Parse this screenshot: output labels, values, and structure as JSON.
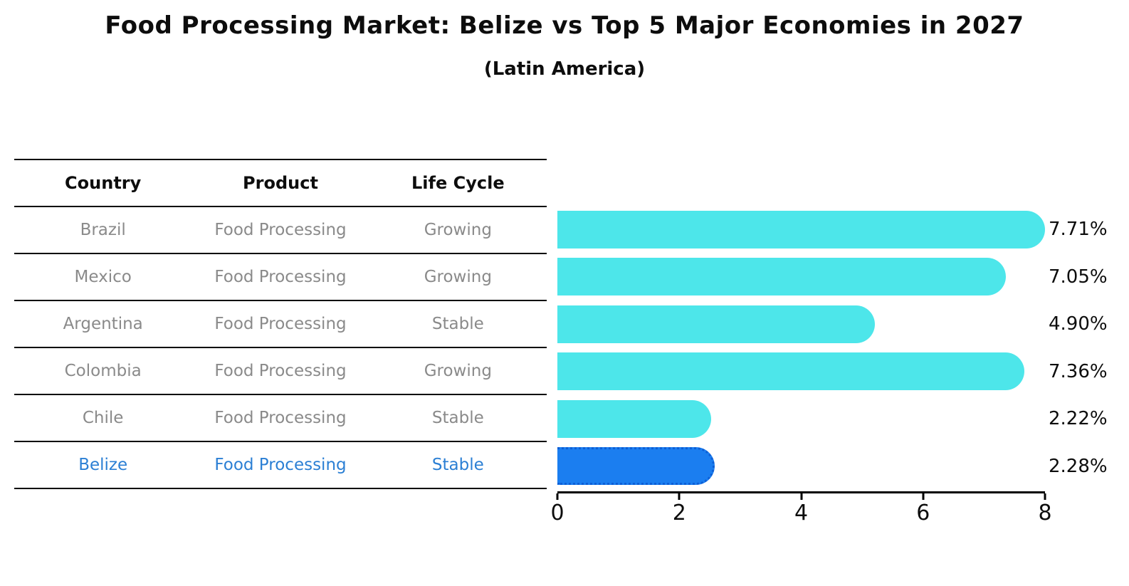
{
  "title": "Food Processing Market: Belize vs Top 5 Major Economies in 2027",
  "subtitle": "(Latin America)",
  "table": {
    "headers": [
      "Country",
      "Product",
      "Life Cycle"
    ],
    "rows": [
      {
        "country": "Brazil",
        "product": "Food Processing",
        "life_cycle": "Growing"
      },
      {
        "country": "Mexico",
        "product": "Food Processing",
        "life_cycle": "Growing"
      },
      {
        "country": "Argentina",
        "product": "Food Processing",
        "life_cycle": "Stable"
      },
      {
        "country": "Colombia",
        "product": "Food Processing",
        "life_cycle": "Growing"
      },
      {
        "country": "Chile",
        "product": "Food Processing",
        "life_cycle": "Stable"
      },
      {
        "country": "Belize",
        "product": "Food Processing",
        "life_cycle": "Stable"
      }
    ]
  },
  "chart_data": {
    "type": "bar",
    "orientation": "horizontal",
    "title": "Food Processing Market: Belize vs Top 5 Major Economies in 2027 (Latin America)",
    "categories": [
      "Brazil",
      "Mexico",
      "Argentina",
      "Colombia",
      "Chile",
      "Belize"
    ],
    "values": [
      7.71,
      7.05,
      4.9,
      7.36,
      2.22,
      2.28
    ],
    "value_labels": [
      "7.71%",
      "7.05%",
      "4.90%",
      "7.36%",
      "2.22%",
      "2.28%"
    ],
    "xlabel": "",
    "ylabel": "",
    "xlim": [
      0,
      8
    ],
    "x_ticks": [
      "0",
      "2",
      "4",
      "6",
      "8"
    ],
    "grid": "off",
    "legend": "none",
    "bar_color": "#4de6ea",
    "highlight_color": "#1b7ef0",
    "highlight_border_color": "#0d5fd6",
    "highlight_index": 5,
    "accent_text_color": "#2b7fd4"
  }
}
